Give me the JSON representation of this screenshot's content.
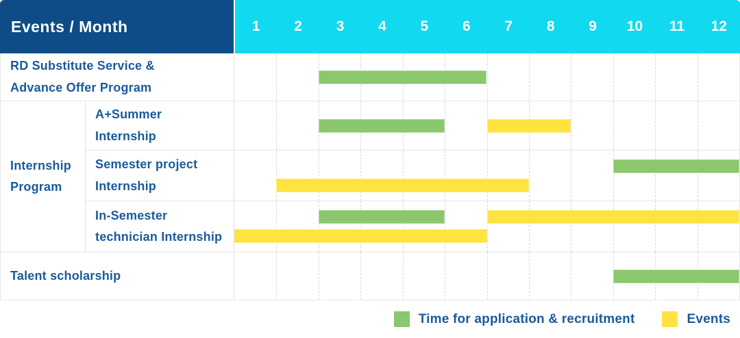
{
  "header": {
    "title": "Events / Month",
    "months": [
      "1",
      "2",
      "3",
      "4",
      "5",
      "6",
      "7",
      "8",
      "9",
      "10",
      "11",
      "12"
    ]
  },
  "colors": {
    "header_bg": "#0d4c86",
    "months_bg": "#10d9f0",
    "label_text": "#1a5a9b",
    "green": "#8bc76d",
    "yellow": "#ffe33e"
  },
  "group": {
    "label": "Internship Program",
    "label_lines": [
      "Internship",
      "Program"
    ]
  },
  "legend": {
    "items": [
      {
        "color_key": "green",
        "label": "Time for application & recruitment"
      },
      {
        "color_key": "yellow",
        "label": "Events"
      }
    ]
  },
  "chart_data": {
    "type": "bar",
    "subtype": "gantt-timeline",
    "title": "Events / Month",
    "x_axis": {
      "label": "Month",
      "ticks": [
        1,
        2,
        3,
        4,
        5,
        6,
        7,
        8,
        9,
        10,
        11,
        12
      ],
      "range": [
        1,
        12
      ],
      "grid": true
    },
    "legend_position": "bottom-right",
    "series_meaning": {
      "green": "Time for application & recruitment",
      "yellow": "Events"
    },
    "rows": [
      {
        "label": "RD Substitute Service & Advance Offer Program",
        "label_lines": [
          "RD Substitute Service &",
          "Advance Offer Program"
        ],
        "group": null,
        "bars": [
          {
            "color": "green",
            "series": "Time for application & recruitment",
            "start_month": 3,
            "end_month": 6,
            "lane": "center"
          }
        ]
      },
      {
        "label": "A+Summer Internship",
        "label_lines": [
          "A+Summer",
          "Internship"
        ],
        "group": "Internship Program",
        "bars": [
          {
            "color": "green",
            "series": "Time for application & recruitment",
            "start_month": 3,
            "end_month": 5,
            "lane": "center"
          },
          {
            "color": "yellow",
            "series": "Events",
            "start_month": 7,
            "end_month": 8,
            "lane": "center"
          }
        ]
      },
      {
        "label": "Semester project Internship",
        "label_lines": [
          "Semester project",
          "Internship"
        ],
        "group": "Internship Program",
        "bars": [
          {
            "color": "green",
            "series": "Time for application & recruitment",
            "start_month": 10,
            "end_month": 12,
            "lane": "top"
          },
          {
            "color": "yellow",
            "series": "Events",
            "start_month": 2,
            "end_month": 7,
            "lane": "bottom"
          }
        ]
      },
      {
        "label": "In-Semester technician Internship",
        "label_lines": [
          "In-Semester",
          "technician Internship"
        ],
        "group": "Internship Program",
        "bars": [
          {
            "color": "green",
            "series": "Time for application & recruitment",
            "start_month": 3,
            "end_month": 5,
            "lane": "top"
          },
          {
            "color": "yellow",
            "series": "Events",
            "start_month": 7,
            "end_month": 12,
            "lane": "top"
          },
          {
            "color": "yellow",
            "series": "Events",
            "start_month": 1,
            "end_month": 6,
            "lane": "bottom"
          }
        ]
      },
      {
        "label": "Talent scholarship",
        "label_lines": [
          "Talent scholarship"
        ],
        "group": null,
        "bars": [
          {
            "color": "green",
            "series": "Time for application & recruitment",
            "start_month": 10,
            "end_month": 12,
            "lane": "center"
          }
        ]
      }
    ]
  }
}
